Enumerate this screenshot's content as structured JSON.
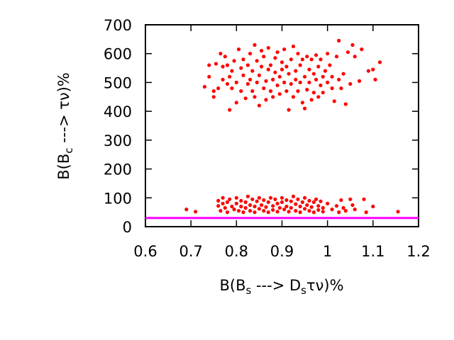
{
  "chart_data": {
    "type": "scatter",
    "xlabel": {
      "main": "B(B",
      "sub1": "s",
      "mid": " ---> D",
      "sub2": "s",
      "tail": "τν)%"
    },
    "ylabel": {
      "main": "B(B",
      "sub": "c",
      "tail": " ---> τν)%"
    },
    "xlim": [
      0.6,
      1.2
    ],
    "ylim": [
      0,
      700
    ],
    "xticks": [
      0.6,
      0.7,
      0.8,
      0.9,
      1.0,
      1.1,
      1.2
    ],
    "xtick_labels": [
      "0.6",
      "0.7",
      "0.8",
      "0.9",
      "1",
      "1.1",
      "1.2"
    ],
    "yticks": [
      0,
      100,
      200,
      300,
      400,
      500,
      600,
      700
    ],
    "ytick_labels": [
      "0",
      "100",
      "200",
      "300",
      "400",
      "500",
      "600",
      "700"
    ],
    "grid": false,
    "point_color": "#ff0000",
    "line_color": "#ff00ff",
    "hline": {
      "y": 30
    },
    "series": [
      {
        "points": [
          [
            0.73,
            485
          ],
          [
            0.74,
            560
          ],
          [
            0.74,
            520
          ],
          [
            0.75,
            470
          ],
          [
            0.75,
            450
          ],
          [
            0.755,
            565
          ],
          [
            0.76,
            480
          ],
          [
            0.765,
            600
          ],
          [
            0.77,
            555
          ],
          [
            0.77,
            510
          ],
          [
            0.775,
            590
          ],
          [
            0.78,
            560
          ],
          [
            0.78,
            495
          ],
          [
            0.785,
            405
          ],
          [
            0.785,
            520
          ],
          [
            0.79,
            540
          ],
          [
            0.79,
            480
          ],
          [
            0.795,
            575
          ],
          [
            0.8,
            430
          ],
          [
            0.8,
            500
          ],
          [
            0.805,
            615
          ],
          [
            0.81,
            550
          ],
          [
            0.81,
            470
          ],
          [
            0.815,
            525
          ],
          [
            0.815,
            580
          ],
          [
            0.82,
            445
          ],
          [
            0.825,
            495
          ],
          [
            0.825,
            560
          ],
          [
            0.83,
            600
          ],
          [
            0.83,
            510
          ],
          [
            0.835,
            470
          ],
          [
            0.835,
            540
          ],
          [
            0.84,
            630
          ],
          [
            0.84,
            450
          ],
          [
            0.845,
            500
          ],
          [
            0.845,
            575
          ],
          [
            0.85,
            525
          ],
          [
            0.85,
            420
          ],
          [
            0.855,
            555
          ],
          [
            0.855,
            610
          ],
          [
            0.86,
            480
          ],
          [
            0.86,
            590
          ],
          [
            0.865,
            505
          ],
          [
            0.865,
            440
          ],
          [
            0.87,
            545
          ],
          [
            0.87,
            620
          ],
          [
            0.875,
            470
          ],
          [
            0.875,
            560
          ],
          [
            0.88,
            510
          ],
          [
            0.88,
            450
          ],
          [
            0.885,
            585
          ],
          [
            0.885,
            535
          ],
          [
            0.89,
            490
          ],
          [
            0.89,
            605
          ],
          [
            0.895,
            460
          ],
          [
            0.895,
            520
          ],
          [
            0.9,
            570
          ],
          [
            0.9,
            545
          ],
          [
            0.905,
            500
          ],
          [
            0.905,
            615
          ],
          [
            0.91,
            470
          ],
          [
            0.91,
            555
          ],
          [
            0.915,
            530
          ],
          [
            0.915,
            405
          ],
          [
            0.92,
            580
          ],
          [
            0.92,
            495
          ],
          [
            0.925,
            625
          ],
          [
            0.925,
            450
          ],
          [
            0.93,
            540
          ],
          [
            0.93,
            510
          ],
          [
            0.935,
            600
          ],
          [
            0.935,
            470
          ],
          [
            0.94,
            560
          ],
          [
            0.94,
            500
          ],
          [
            0.945,
            430
          ],
          [
            0.945,
            580
          ],
          [
            0.95,
            520
          ],
          [
            0.95,
            410
          ],
          [
            0.955,
            590
          ],
          [
            0.955,
            475
          ],
          [
            0.96,
            545
          ],
          [
            0.96,
            500
          ],
          [
            0.965,
            440
          ],
          [
            0.965,
            580
          ],
          [
            0.97,
            530
          ],
          [
            0.97,
            465
          ],
          [
            0.975,
            595
          ],
          [
            0.975,
            510
          ],
          [
            0.98,
            555
          ],
          [
            0.98,
            450
          ],
          [
            0.985,
            490
          ],
          [
            0.985,
            580
          ],
          [
            0.99,
            520
          ],
          [
            0.99,
            465
          ],
          [
            0.995,
            540
          ],
          [
            1.0,
            600
          ],
          [
            1.0,
            500
          ],
          [
            1.005,
            560
          ],
          [
            1.01,
            480
          ],
          [
            1.01,
            520
          ],
          [
            1.015,
            435
          ],
          [
            1.02,
            590
          ],
          [
            1.025,
            645
          ],
          [
            1.025,
            510
          ],
          [
            1.03,
            480
          ],
          [
            1.035,
            530
          ],
          [
            1.04,
            425
          ],
          [
            1.045,
            605
          ],
          [
            1.05,
            495
          ],
          [
            1.055,
            630
          ],
          [
            1.06,
            590
          ],
          [
            1.07,
            505
          ],
          [
            1.075,
            615
          ],
          [
            1.09,
            540
          ],
          [
            1.1,
            545
          ],
          [
            1.105,
            510
          ],
          [
            1.115,
            570
          ],
          [
            0.69,
            60
          ],
          [
            0.71,
            52
          ],
          [
            0.76,
            90
          ],
          [
            0.76,
            72
          ],
          [
            0.765,
            55
          ],
          [
            0.77,
            100
          ],
          [
            0.77,
            80
          ],
          [
            0.775,
            65
          ],
          [
            0.78,
            85
          ],
          [
            0.78,
            50
          ],
          [
            0.785,
            95
          ],
          [
            0.79,
            70
          ],
          [
            0.795,
            60
          ],
          [
            0.8,
            100
          ],
          [
            0.8,
            80
          ],
          [
            0.805,
            55
          ],
          [
            0.81,
            90
          ],
          [
            0.81,
            70
          ],
          [
            0.815,
            50
          ],
          [
            0.82,
            85
          ],
          [
            0.82,
            65
          ],
          [
            0.825,
            105
          ],
          [
            0.83,
            75
          ],
          [
            0.83,
            55
          ],
          [
            0.835,
            95
          ],
          [
            0.84,
            70
          ],
          [
            0.84,
            50
          ],
          [
            0.845,
            88
          ],
          [
            0.85,
            62
          ],
          [
            0.85,
            100
          ],
          [
            0.855,
            75
          ],
          [
            0.86,
            55
          ],
          [
            0.86,
            92
          ],
          [
            0.865,
            68
          ],
          [
            0.87,
            50
          ],
          [
            0.87,
            85
          ],
          [
            0.875,
            100
          ],
          [
            0.88,
            72
          ],
          [
            0.88,
            58
          ],
          [
            0.885,
            95
          ],
          [
            0.89,
            80
          ],
          [
            0.89,
            52
          ],
          [
            0.895,
            65
          ],
          [
            0.9,
            100
          ],
          [
            0.9,
            85
          ],
          [
            0.905,
            60
          ],
          [
            0.91,
            92
          ],
          [
            0.91,
            70
          ],
          [
            0.915,
            52
          ],
          [
            0.92,
            88
          ],
          [
            0.92,
            65
          ],
          [
            0.925,
            105
          ],
          [
            0.93,
            78
          ],
          [
            0.93,
            55
          ],
          [
            0.935,
            95
          ],
          [
            0.94,
            70
          ],
          [
            0.94,
            50
          ],
          [
            0.945,
            85
          ],
          [
            0.95,
            62
          ],
          [
            0.95,
            100
          ],
          [
            0.955,
            75
          ],
          [
            0.96,
            55
          ],
          [
            0.96,
            90
          ],
          [
            0.965,
            68
          ],
          [
            0.97,
            50
          ],
          [
            0.97,
            85
          ],
          [
            0.975,
            95
          ],
          [
            0.98,
            72
          ],
          [
            0.98,
            58
          ],
          [
            0.985,
            88
          ],
          [
            0.99,
            65
          ],
          [
            0.99,
            52
          ],
          [
            1.0,
            80
          ],
          [
            1.01,
            60
          ],
          [
            1.02,
            72
          ],
          [
            1.025,
            50
          ],
          [
            1.03,
            92
          ],
          [
            1.035,
            65
          ],
          [
            1.04,
            55
          ],
          [
            1.05,
            95
          ],
          [
            1.055,
            75
          ],
          [
            1.06,
            60
          ],
          [
            1.08,
            95
          ],
          [
            1.085,
            50
          ],
          [
            1.1,
            70
          ],
          [
            1.155,
            52
          ]
        ]
      }
    ]
  }
}
